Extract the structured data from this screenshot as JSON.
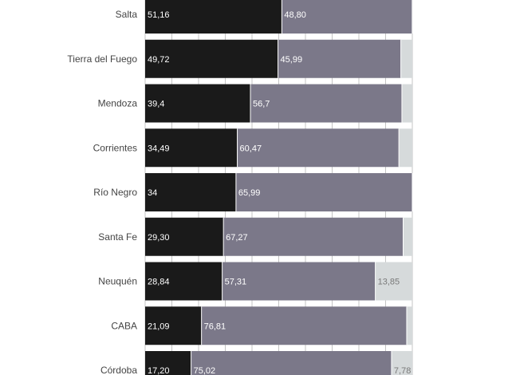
{
  "chart_data": {
    "type": "bar",
    "stacked": true,
    "orientation": "horizontal",
    "normalized_to": 100,
    "categories": [
      "Salta",
      "Tierra del Fuego",
      "Mendoza",
      "Corrientes",
      "Río Negro",
      "Santa Fe",
      "Neuquén",
      "CABA",
      "Córdoba"
    ],
    "series": [
      {
        "color": "#1a1a1a",
        "values": [
          51.16,
          49.72,
          39.4,
          34.49,
          34,
          29.3,
          28.84,
          21.09,
          17.2
        ],
        "labels": [
          "51,16",
          "49,72",
          "39,4",
          "34,49",
          "34",
          "29,30",
          "28,84",
          "21,09",
          "17,20"
        ]
      },
      {
        "color": "#7b7889",
        "values": [
          48.8,
          45.99,
          56.7,
          60.47,
          65.99,
          67.27,
          57.31,
          76.81,
          75.02
        ],
        "labels": [
          "48,80",
          "45,99",
          "56,7",
          "60,47",
          "65,99",
          "67,27",
          "57,31",
          "76,81",
          "75,02"
        ]
      },
      {
        "color": "#d6dadb",
        "values": [
          0.04,
          4.29,
          3.9,
          5.04,
          0.01,
          3.43,
          13.85,
          2.1,
          7.78
        ],
        "labels": [
          "",
          "",
          "",
          "",
          "",
          "",
          "13,85",
          "",
          "7,78"
        ]
      }
    ],
    "xlim": [
      0,
      100
    ],
    "grid": true,
    "legend": "none"
  }
}
